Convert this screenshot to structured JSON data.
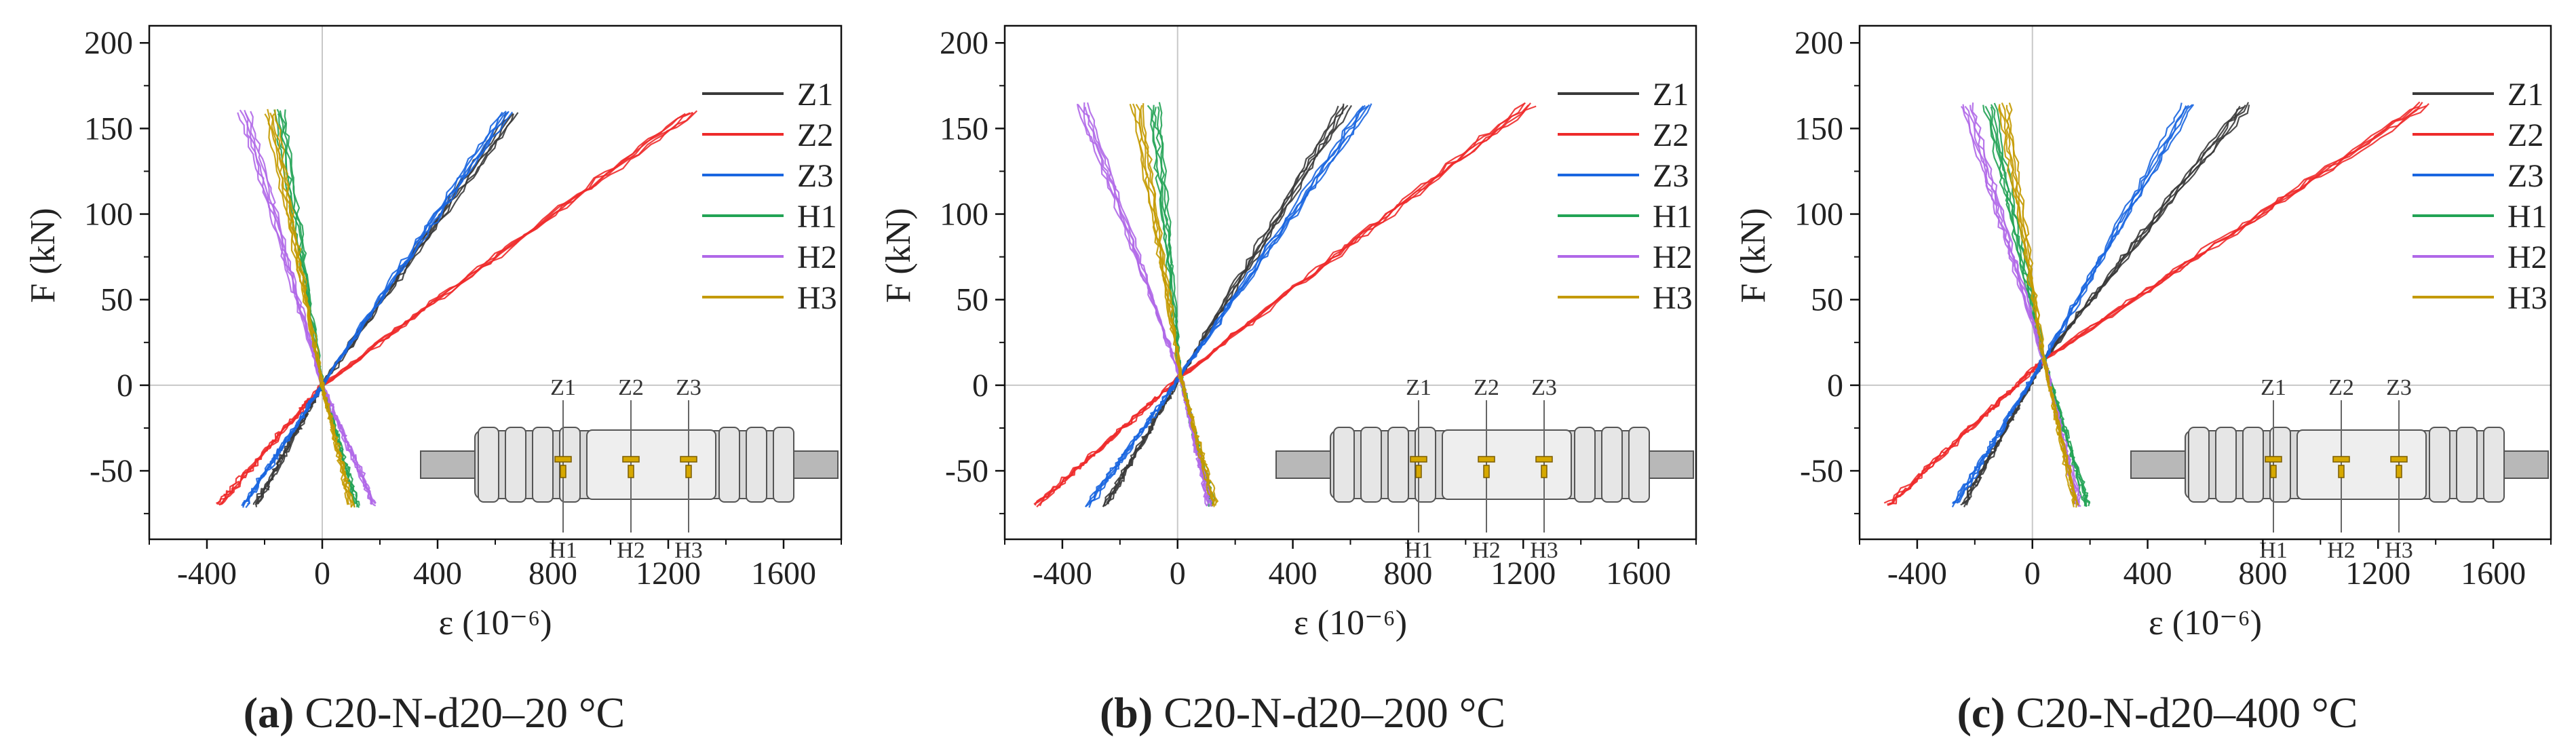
{
  "figure": {
    "colors": {
      "Z1": "#3a3a3a",
      "Z2": "#ee2b2b",
      "Z3": "#1a66e0",
      "H1": "#22a355",
      "H2": "#b068e8",
      "H3": "#c49a00"
    }
  },
  "chart_data": [
    {
      "type": "line",
      "caption_label": "(a)",
      "caption_text": " C20-N-d20–20 °C",
      "xlabel": "ε (10⁻⁶)",
      "ylabel": "F (kN)",
      "xlim": [
        -600,
        1800
      ],
      "ylim": [
        -90,
        210
      ],
      "xticks": [
        "-400",
        "0",
        "400",
        "800",
        "1200",
        "1600"
      ],
      "yticks": [
        "-50",
        "0",
        "50",
        "100",
        "150",
        "200"
      ],
      "legend": [
        "Z1",
        "Z2",
        "Z3",
        "H1",
        "H2",
        "H3"
      ],
      "specimen_labels": {
        "top": [
          "Z1",
          "Z2",
          "Z3"
        ],
        "bottom": [
          "H1",
          "H2",
          "H3"
        ]
      },
      "series": [
        {
          "name": "Z1",
          "x": [
            -230,
            0,
            660
          ],
          "y": [
            -70,
            0,
            158
          ]
        },
        {
          "name": "Z2",
          "x": [
            -360,
            0,
            1280
          ],
          "y": [
            -70,
            0,
            160
          ]
        },
        {
          "name": "Z3",
          "x": [
            -270,
            0,
            640
          ],
          "y": [
            -70,
            0,
            160
          ]
        },
        {
          "name": "H1",
          "x": [
            -150,
            0,
            120
          ],
          "y": [
            160,
            0,
            -70
          ]
        },
        {
          "name": "H2",
          "x": [
            -270,
            0,
            180
          ],
          "y": [
            160,
            0,
            -70
          ]
        },
        {
          "name": "H3",
          "x": [
            -180,
            0,
            100
          ],
          "y": [
            160,
            0,
            -70
          ]
        }
      ]
    },
    {
      "type": "line",
      "caption_label": "(b)",
      "caption_text": " C20-N-d20–200 °C",
      "xlabel": "ε (10⁻⁶)",
      "ylabel": "F (kN)",
      "xlim": [
        -600,
        1800
      ],
      "ylim": [
        -90,
        210
      ],
      "xticks": [
        "-400",
        "0",
        "400",
        "800",
        "1200",
        "1600"
      ],
      "yticks": [
        "-50",
        "0",
        "50",
        "100",
        "150",
        "200"
      ],
      "legend": [
        "Z1",
        "Z2",
        "Z3",
        "H1",
        "H2",
        "H3"
      ],
      "specimen_labels": {
        "top": [
          "Z1",
          "Z2",
          "Z3"
        ],
        "bottom": [
          "H1",
          "H2",
          "H3"
        ]
      },
      "series": [
        {
          "name": "Z1",
          "x": [
            -250,
            10,
            580
          ],
          "y": [
            -70,
            5,
            163
          ]
        },
        {
          "name": "Z2",
          "x": [
            -490,
            10,
            1220
          ],
          "y": [
            -70,
            5,
            164
          ]
        },
        {
          "name": "Z3",
          "x": [
            -310,
            10,
            660
          ],
          "y": [
            -70,
            5,
            164
          ]
        },
        {
          "name": "H1",
          "x": [
            -80,
            10,
            120
          ],
          "y": [
            164,
            5,
            -70
          ]
        },
        {
          "name": "H2",
          "x": [
            -330,
            10,
            110
          ],
          "y": [
            164,
            5,
            -70
          ]
        },
        {
          "name": "H3",
          "x": [
            -140,
            10,
            130
          ],
          "y": [
            164,
            5,
            -70
          ]
        }
      ]
    },
    {
      "type": "line",
      "caption_label": "(c)",
      "caption_text": " C20-N-d20–400 °C",
      "xlabel": "ε (10⁻⁶)",
      "ylabel": "F (kN)",
      "xlim": [
        -600,
        1800
      ],
      "ylim": [
        -90,
        210
      ],
      "xticks": [
        "-400",
        "0",
        "400",
        "800",
        "1200",
        "1600"
      ],
      "yticks": [
        "-50",
        "0",
        "50",
        "100",
        "150",
        "200"
      ],
      "legend": [
        "Z1",
        "Z2",
        "Z3",
        "H1",
        "H2",
        "H3"
      ],
      "specimen_labels": {
        "top": [
          "Z1",
          "Z2",
          "Z3"
        ],
        "bottom": [
          "H1",
          "H2",
          "H3"
        ]
      },
      "series": [
        {
          "name": "Z1",
          "x": [
            -240,
            40,
            740
          ],
          "y": [
            -70,
            15,
            164
          ]
        },
        {
          "name": "Z2",
          "x": [
            -500,
            40,
            1360
          ],
          "y": [
            -70,
            15,
            164
          ]
        },
        {
          "name": "Z3",
          "x": [
            -270,
            40,
            540
          ],
          "y": [
            -70,
            15,
            164
          ]
        },
        {
          "name": "H1",
          "x": [
            -150,
            40,
            190
          ],
          "y": [
            164,
            15,
            -70
          ]
        },
        {
          "name": "H2",
          "x": [
            -230,
            40,
            160
          ],
          "y": [
            164,
            15,
            -70
          ]
        },
        {
          "name": "H3",
          "x": [
            -100,
            40,
            150
          ],
          "y": [
            164,
            15,
            -70
          ]
        }
      ]
    }
  ]
}
